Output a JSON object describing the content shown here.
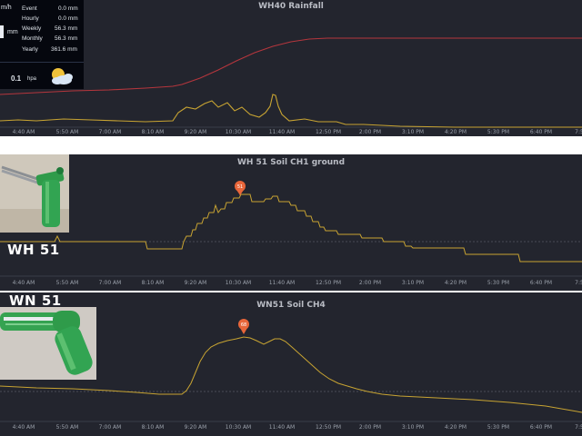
{
  "panels": [
    {
      "title": "WH40 Rainfall"
    },
    {
      "title": "WH 51 Soil CH1 ground"
    },
    {
      "title": "WN51 Soil CH4"
    }
  ],
  "time_ticks": [
    "4:40 AM",
    "5:50 AM",
    "7:00 AM",
    "8:10 AM",
    "9:20 AM",
    "10:30 AM",
    "11:40 AM",
    "12:50 PM",
    "2:00 PM",
    "3:10 PM",
    "4:20 PM",
    "5:30 PM",
    "6:40 PM",
    "7:5"
  ],
  "weather_display": {
    "unit_top": "m/h",
    "rows": [
      {
        "label": "Event",
        "value": "0.0 mm"
      },
      {
        "label": "Hourly",
        "value": "0.0 mm"
      },
      {
        "label": "Weekly",
        "value": "56.3 mm"
      },
      {
        "label": "Monthly",
        "value": "56.3 mm"
      },
      {
        "label": "Yearly",
        "value": "361.6 mm"
      }
    ],
    "mm_unit": "mm",
    "pressure_value": "0.1",
    "pressure_unit": "hpa"
  },
  "markers": {
    "ch1_peak": "51",
    "ch4_peak": "68"
  },
  "overlays": {
    "wh51_label": "WH 51",
    "wn51_label": "WN 51"
  },
  "colors": {
    "panel_bg": "#23252e",
    "series_gold": "#c8a432",
    "series_red": "#b5363d",
    "marker": "#e8663a"
  },
  "chart_data": [
    {
      "type": "line",
      "title": "WH40 Rainfall",
      "x": [
        "4:40 AM",
        "5:50 AM",
        "7:00 AM",
        "8:10 AM",
        "9:20 AM",
        "10:30 AM",
        "11:40 AM",
        "12:50 PM",
        "2:00 PM",
        "3:10 PM",
        "4:20 PM",
        "5:30 PM",
        "6:40 PM"
      ],
      "series": [
        {
          "values": [
            0.05,
            0.1,
            0.15,
            0.2,
            0.55,
            0.85,
            0.98,
            1,
            1,
            1,
            1,
            1,
            1
          ]
        },
        {
          "values": [
            0.02,
            0.02,
            0.02,
            0.02,
            0.3,
            0.45,
            0.5,
            0.05,
            0.01,
            0,
            0,
            0,
            0
          ]
        }
      ]
    },
    {
      "type": "line",
      "title": "WH 51 Soil CH1 ground",
      "x": [
        "4:40 AM",
        "5:50 AM",
        "7:00 AM",
        "8:10 AM",
        "9:20 AM",
        "10:30 AM",
        "11:40 AM",
        "12:50 PM",
        "2:00 PM",
        "3:10 PM",
        "4:20 PM",
        "5:30 PM",
        "6:40 PM"
      ],
      "series": [
        {
          "values": [
            45,
            45,
            45,
            44,
            48,
            51,
            50,
            47,
            46,
            44,
            43,
            41,
            40
          ]
        }
      ],
      "annotations": [
        "51"
      ]
    },
    {
      "type": "line",
      "title": "WN51 Soil CH4",
      "x": [
        "4:40 AM",
        "5:50 AM",
        "7:00 AM",
        "8:10 AM",
        "9:20 AM",
        "10:30 AM",
        "11:40 AM",
        "12:50 PM",
        "2:00 PM",
        "3:10 PM",
        "4:20 PM",
        "5:30 PM",
        "6:40 PM"
      ],
      "series": [
        {
          "values": [
            60,
            60,
            59,
            59,
            66,
            68,
            67,
            63,
            60,
            59,
            58,
            57,
            56
          ]
        }
      ],
      "annotations": [
        "68"
      ]
    }
  ]
}
